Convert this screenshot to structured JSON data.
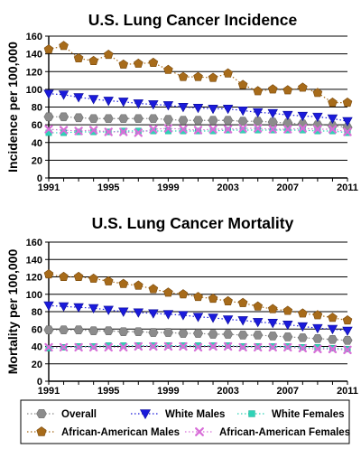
{
  "chart_data": [
    {
      "type": "line",
      "title": "U.S. Lung Cancer Incidence",
      "ylabel": "Incidence per 100,000",
      "xlabel": "",
      "ylim": [
        0,
        160
      ],
      "yticks": [
        0,
        20,
        40,
        60,
        80,
        100,
        120,
        140,
        160
      ],
      "xlim": [
        1991,
        2011
      ],
      "xticks": [
        1991,
        1995,
        1999,
        2003,
        2007,
        2011
      ],
      "grid": true,
      "x": [
        1991,
        1992,
        1993,
        1994,
        1995,
        1996,
        1997,
        1998,
        1999,
        2000,
        2001,
        2002,
        2003,
        2004,
        2005,
        2006,
        2007,
        2008,
        2009,
        2010,
        2011
      ],
      "series": [
        {
          "name": "Overall",
          "marker": "hexagon",
          "color": "#8c8c8c",
          "values": [
            69,
            69,
            68,
            67,
            67,
            67,
            67,
            67,
            66,
            65,
            65,
            65,
            65,
            64,
            64,
            63,
            62,
            61,
            60,
            59,
            57
          ]
        },
        {
          "name": "White Males",
          "marker": "triangle-down",
          "color": "#1a1adb",
          "values": [
            95,
            94,
            91,
            89,
            87,
            86,
            84,
            83,
            82,
            80,
            79,
            78,
            78,
            76,
            74,
            73,
            71,
            70,
            69,
            67,
            64
          ]
        },
        {
          "name": "White Females",
          "marker": "square",
          "color": "#2ed3b7",
          "values": [
            51,
            51,
            52,
            52,
            52,
            53,
            53,
            53,
            53,
            53,
            53,
            53,
            54,
            54,
            54,
            54,
            54,
            54,
            53,
            53,
            51
          ]
        },
        {
          "name": "African-American Males",
          "marker": "pentagon",
          "color": "#a76b1a",
          "values": [
            145,
            149,
            135,
            132,
            139,
            128,
            129,
            130,
            122,
            114,
            114,
            113,
            118,
            105,
            98,
            100,
            99,
            102,
            96,
            85,
            85
          ]
        },
        {
          "name": "African-American Females",
          "marker": "x",
          "color": "#d86ed8",
          "values": [
            55,
            54,
            53,
            54,
            52,
            52,
            51,
            55,
            56,
            55,
            54,
            55,
            55,
            56,
            56,
            55,
            55,
            56,
            55,
            55,
            52
          ]
        }
      ]
    },
    {
      "type": "line",
      "title": "U.S. Lung Cancer Mortality",
      "ylabel": "Mortality per 100,000",
      "xlabel": "",
      "ylim": [
        0,
        160
      ],
      "yticks": [
        0,
        20,
        40,
        60,
        80,
        100,
        120,
        140,
        160
      ],
      "xlim": [
        1991,
        2011
      ],
      "xticks": [
        1991,
        1995,
        1999,
        2003,
        2007,
        2011
      ],
      "grid": true,
      "x": [
        1991,
        1992,
        1993,
        1994,
        1995,
        1996,
        1997,
        1998,
        1999,
        2000,
        2001,
        2002,
        2003,
        2004,
        2005,
        2006,
        2007,
        2008,
        2009,
        2010,
        2011
      ],
      "series": [
        {
          "name": "Overall",
          "marker": "hexagon",
          "color": "#8c8c8c",
          "values": [
            59,
            59,
            59,
            58,
            58,
            57,
            57,
            56,
            56,
            55,
            55,
            54,
            54,
            53,
            53,
            52,
            51,
            50,
            49,
            48,
            47
          ]
        },
        {
          "name": "White Males",
          "marker": "triangle-down",
          "color": "#1a1adb",
          "values": [
            87,
            86,
            85,
            84,
            82,
            80,
            79,
            78,
            77,
            76,
            74,
            73,
            71,
            70,
            68,
            67,
            65,
            63,
            61,
            60,
            58
          ]
        },
        {
          "name": "White Females",
          "marker": "square",
          "color": "#2ed3b7",
          "values": [
            38,
            39,
            40,
            40,
            41,
            41,
            41,
            41,
            41,
            41,
            41,
            41,
            41,
            40,
            40,
            40,
            40,
            39,
            39,
            38,
            37
          ]
        },
        {
          "name": "African-American Males",
          "marker": "pentagon",
          "color": "#a76b1a",
          "values": [
            123,
            120,
            120,
            118,
            115,
            112,
            110,
            106,
            102,
            100,
            97,
            95,
            92,
            90,
            86,
            83,
            81,
            78,
            76,
            73,
            70
          ]
        },
        {
          "name": "African-American Females",
          "marker": "x",
          "color": "#d86ed8",
          "values": [
            39,
            39,
            39,
            39,
            39,
            39,
            40,
            40,
            40,
            40,
            39,
            40,
            40,
            39,
            39,
            39,
            39,
            38,
            37,
            37,
            36
          ]
        }
      ]
    }
  ],
  "legend": {
    "placement": "bottom",
    "entries": [
      {
        "label": "Overall",
        "marker": "hexagon",
        "color": "#8c8c8c"
      },
      {
        "label": "White Males",
        "marker": "triangle-down",
        "color": "#1a1adb"
      },
      {
        "label": "White Females",
        "marker": "square",
        "color": "#2ed3b7"
      },
      {
        "label": "African-American Males",
        "marker": "pentagon",
        "color": "#a76b1a"
      },
      {
        "label": "African-American Females",
        "marker": "x",
        "color": "#d86ed8"
      }
    ]
  }
}
